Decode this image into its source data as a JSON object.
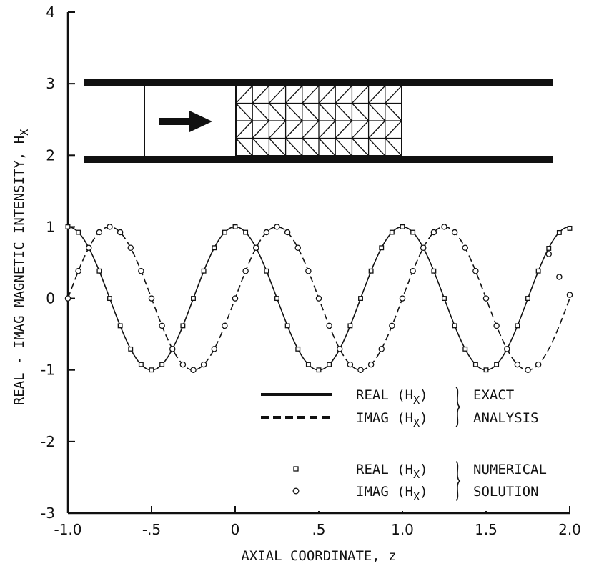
{
  "chart_data": {
    "type": "line",
    "title": "",
    "xlabel": "AXIAL COORDINATE, z",
    "ylabel": "REAL - IMAG MAGNETIC INTENSITY, H",
    "ylabel_subscript": "X",
    "xlim": [
      -1.0,
      2.0
    ],
    "ylim": [
      -3,
      4
    ],
    "x_ticks": [
      -1.0,
      -0.5,
      0,
      0.5,
      1.0,
      1.5,
      2.0
    ],
    "x_tick_labels": [
      "-1.0",
      "-.5",
      "0",
      ".5",
      "1.0",
      "1.5",
      "2.0"
    ],
    "y_ticks": [
      -3,
      -2,
      -1,
      0,
      1,
      2,
      3,
      4
    ],
    "y_tick_labels": [
      "-3",
      "-2",
      "-1",
      "0",
      "1",
      "2",
      "3",
      "4"
    ],
    "grid": false,
    "exact_curves": [
      {
        "component": "REAL",
        "style": "solid",
        "function": "cos(2*pi*z)",
        "x_range": [
          -1.0,
          2.0
        ]
      },
      {
        "component": "IMAG",
        "style": "dashed",
        "function": "sin(2*pi*z)",
        "x_range": [
          -1.0,
          2.0
        ]
      }
    ],
    "numerical_series": [
      {
        "component": "REAL",
        "marker": "square",
        "x_step": 0.0625,
        "x_range": [
          -1.0,
          2.0
        ],
        "end_values": [
          {
            "x": 1.875,
            "y": 0.7
          },
          {
            "x": 1.9375,
            "y": 0.92
          },
          {
            "x": 2.0,
            "y": 0.98
          }
        ]
      },
      {
        "component": "IMAG",
        "marker": "circle",
        "x_step": 0.0625,
        "x_range": [
          -1.0,
          2.0
        ],
        "end_values": [
          {
            "x": 1.875,
            "y": 0.62
          },
          {
            "x": 1.9375,
            "y": 0.3
          },
          {
            "x": 2.0,
            "y": 0.05
          }
        ]
      }
    ],
    "legend": {
      "placement": "lower-right",
      "exact_group": {
        "entries": [
          {
            "text": "REAL (H",
            "sub": "X",
            "close": ")",
            "style": "solid"
          },
          {
            "text": "IMAG (H",
            "sub": "X",
            "close": ")",
            "style": "dashed"
          }
        ],
        "label_lines": [
          "EXACT",
          "ANALYSIS"
        ]
      },
      "numerical_group": {
        "entries": [
          {
            "text": "REAL (H",
            "sub": "X",
            "close": ")",
            "marker": "square"
          },
          {
            "text": "IMAG (H",
            "sub": "X",
            "close": ")",
            "marker": "circle"
          }
        ],
        "label_lines": [
          "NUMERICAL",
          "SOLUTION"
        ]
      }
    },
    "inset_diagram": {
      "description_visible": false,
      "elements": [
        "waveguide-walls",
        "source-plane",
        "propagation-arrow",
        "triangular-mesh"
      ],
      "mesh_columns": 10,
      "mesh_rows": 4
    }
  }
}
